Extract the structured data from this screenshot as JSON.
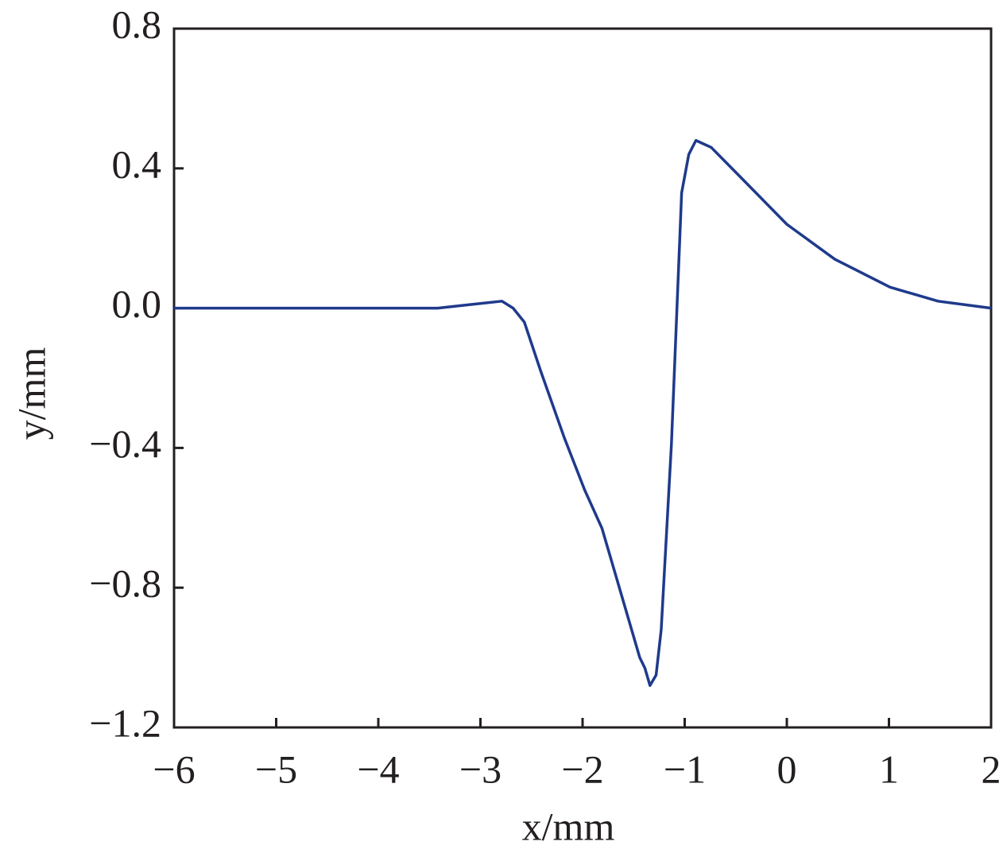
{
  "chart_data": {
    "type": "line",
    "xlabel": "x/mm",
    "ylabel": "y/mm",
    "xlim": [
      -6,
      2
    ],
    "xticks": [
      {
        "value": -6,
        "label": "−6"
      },
      {
        "value": -5,
        "label": "−5"
      },
      {
        "value": -4,
        "label": "−4"
      },
      {
        "value": -3,
        "label": "−3"
      },
      {
        "value": -2,
        "label": "−2"
      },
      {
        "value": -1,
        "label": "−1"
      },
      0,
      1,
      2
    ],
    "ylim": [
      -1.2,
      0.8
    ],
    "yticks": [
      {
        "value": -1.2,
        "label": "−1.2"
      },
      {
        "value": -0.8,
        "label": "−0.8"
      },
      {
        "value": -0.4,
        "label": "−0.4"
      },
      {
        "value": 0,
        "label": "0.0"
      },
      0.4,
      0.8
    ],
    "series": [
      {
        "color": "#1f3a8c",
        "x": [
          -6,
          -5.37,
          -3.42,
          -3.11,
          -2.79,
          -2.68,
          -2.57,
          -2.41,
          -2.18,
          -1.98,
          -1.81,
          -1.6,
          -1.44,
          -1.39,
          -1.34,
          -1.28,
          -1.23,
          -1.13,
          -1.03,
          -0.96,
          -0.89,
          -0.74,
          -0.47,
          0,
          0.47,
          1.01,
          1.48,
          2
        ],
        "values": [
          0,
          0,
          0,
          0.01,
          0.02,
          0,
          -0.04,
          -0.18,
          -0.37,
          -0.52,
          -0.63,
          -0.84,
          -1.0,
          -1.03,
          -1.08,
          -1.05,
          -0.92,
          -0.39,
          0.33,
          0.44,
          0.48,
          0.46,
          0.38,
          0.24,
          0.14,
          0.06,
          0.02,
          0
        ]
      }
    ]
  }
}
